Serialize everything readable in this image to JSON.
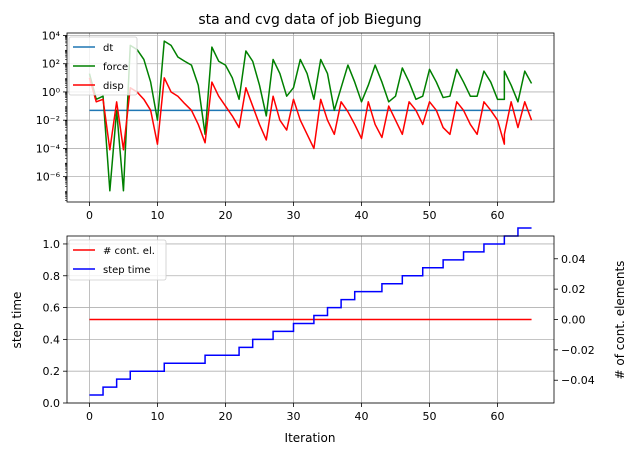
{
  "chart_data": [
    {
      "type": "line",
      "title": "sta and cvg data of job Biegung",
      "yscale": "log",
      "xlim": [
        -3.3,
        68.3
      ],
      "ylim": [
        1.6e-08,
        15000.0
      ],
      "x_ticks": [
        0,
        10,
        20,
        30,
        40,
        50,
        60
      ],
      "x_tick_labels": [
        "0",
        "10",
        "20",
        "30",
        "40",
        "50",
        "60"
      ],
      "y_ticks": [
        1e-06,
        0.0001,
        0.01,
        1,
        100,
        10000
      ],
      "y_tick_labels": [
        "10⁻⁶",
        "10⁻⁴",
        "10⁻²",
        "10⁰",
        "10²",
        "10⁴"
      ],
      "grid": true,
      "legend": "upper-left",
      "x": [
        0,
        1,
        2,
        3,
        4,
        5,
        6,
        7,
        8,
        9,
        10,
        11,
        12,
        13,
        14,
        15,
        16,
        17,
        18,
        19,
        20,
        21,
        22,
        23,
        24,
        25,
        26,
        27,
        28,
        29,
        30,
        31,
        32,
        33,
        34,
        35,
        36,
        37,
        38,
        39,
        40,
        41,
        42,
        43,
        44,
        45,
        46,
        47,
        48,
        49,
        50,
        51,
        52,
        53,
        54,
        55,
        56,
        57,
        58,
        59,
        60,
        61,
        61,
        62,
        63,
        64,
        65
      ],
      "series": [
        {
          "name": "dt",
          "color": "#1f77b4",
          "values": [
            0.05,
            0.05,
            0.05,
            0.05,
            0.05,
            0.05,
            0.05,
            0.05,
            0.05,
            0.05,
            0.05,
            0.05,
            0.05,
            0.05,
            0.05,
            0.05,
            0.05,
            0.05,
            0.05,
            0.05,
            0.05,
            0.05,
            0.05,
            0.05,
            0.05,
            0.05,
            0.05,
            0.05,
            0.05,
            0.05,
            0.05,
            0.05,
            0.05,
            0.05,
            0.05,
            0.05,
            0.05,
            0.05,
            0.05,
            0.05,
            0.05,
            0.05,
            0.05,
            0.05,
            0.05,
            0.05,
            0.05,
            0.05,
            0.05,
            0.05,
            0.05,
            0.05,
            0.05,
            0.05,
            0.05,
            0.05,
            0.05,
            0.05,
            0.05,
            0.05,
            0.05,
            0.05,
            0.05,
            0.05,
            0.05,
            0.05,
            0.05
          ]
        },
        {
          "name": "force",
          "color": "#008000",
          "values": [
            20,
            0.3,
            0.5,
            1e-07,
            0.05,
            1e-07,
            2000,
            1000,
            200,
            5,
            0.01,
            4000,
            2000,
            300,
            150,
            80,
            3,
            0.001,
            1500,
            150,
            80,
            10,
            0.3,
            800,
            150,
            3,
            0.02,
            200,
            20,
            0.5,
            2,
            200,
            20,
            0.3,
            200,
            20,
            0.05,
            2,
            80,
            5,
            0.2,
            3,
            80,
            5,
            0.2,
            0.5,
            50,
            5,
            0.3,
            0.5,
            40,
            5,
            0.4,
            0.5,
            40,
            5,
            0.5,
            0.5,
            30,
            5,
            0.3,
            0.3,
            30,
            3,
            0.2,
            30,
            4
          ]
        },
        {
          "name": "disp",
          "color": "#ff0000",
          "values": [
            10,
            0.2,
            0.3,
            8e-05,
            0.2,
            8e-05,
            2,
            1,
            0.3,
            0.05,
            0.0002,
            10,
            1,
            0.5,
            0.15,
            0.05,
            0.005,
            0.00025,
            5,
            0.5,
            0.1,
            0.02,
            0.003,
            2,
            0.1,
            0.005,
            0.0004,
            0.5,
            0.01,
            0.002,
            0.3,
            0.01,
            0.001,
            0.0001,
            0.3,
            0.01,
            0.001,
            0.2,
            0.04,
            0.005,
            0.0005,
            0.2,
            0.005,
            0.0006,
            0.1,
            0.01,
            0.001,
            0.2,
            0.05,
            0.005,
            0.2,
            0.05,
            0.003,
            0.001,
            0.2,
            0.05,
            0.005,
            0.001,
            0.2,
            0.05,
            0.01,
            0.0002,
            0.001,
            0.2,
            0.003,
            0.2,
            0.01
          ]
        }
      ]
    },
    {
      "type": "line",
      "xlabel": "Iteration",
      "ylabel": "step time",
      "ylabel_right": "# of cont. elements",
      "xlim": [
        -3.3,
        68.3
      ],
      "ylim": [
        0.0,
        1.05
      ],
      "ylim_right": [
        -0.055,
        0.055
      ],
      "x_ticks": [
        0,
        10,
        20,
        30,
        40,
        50,
        60
      ],
      "x_tick_labels": [
        "0",
        "10",
        "20",
        "30",
        "40",
        "50",
        "60"
      ],
      "y_ticks": [
        0.0,
        0.2,
        0.4,
        0.6,
        0.8,
        1.0
      ],
      "y_tick_labels": [
        "0.0",
        "0.2",
        "0.4",
        "0.6",
        "0.8",
        "1.0"
      ],
      "y_ticks_right": [
        -0.04,
        -0.02,
        0.0,
        0.02,
        0.04
      ],
      "y_tick_labels_right": [
        "−0.04",
        "−0.02",
        "0.00",
        "0.02",
        "0.04"
      ],
      "grid": true,
      "legend": "upper-left",
      "series": [
        {
          "name": "# cont. el.",
          "color": "#ff0000",
          "axis": "right",
          "x": [
            0,
            65
          ],
          "values": [
            0.0,
            0.0
          ]
        },
        {
          "name": "step time",
          "color": "#0000ff",
          "axis": "left",
          "drawstyle": "steps",
          "x": [
            0,
            1,
            2,
            3,
            4,
            5,
            6,
            7,
            8,
            9,
            10,
            11,
            12,
            13,
            14,
            15,
            16,
            17,
            18,
            19,
            20,
            21,
            22,
            23,
            24,
            25,
            26,
            27,
            28,
            29,
            30,
            31,
            32,
            33,
            34,
            35,
            36,
            37,
            38,
            39,
            40,
            41,
            42,
            43,
            44,
            45,
            46,
            47,
            48,
            49,
            50,
            51,
            52,
            53,
            54,
            55,
            56,
            57,
            58,
            59,
            60,
            61,
            62,
            63,
            64,
            65
          ],
          "values": [
            0.05,
            0.05,
            0.1,
            0.1,
            0.15,
            0.15,
            0.2,
            0.2,
            0.2,
            0.2,
            0.2,
            0.25,
            0.25,
            0.25,
            0.25,
            0.25,
            0.25,
            0.3,
            0.3,
            0.3,
            0.3,
            0.3,
            0.35,
            0.35,
            0.4,
            0.4,
            0.4,
            0.45,
            0.45,
            0.45,
            0.5,
            0.5,
            0.5,
            0.55,
            0.55,
            0.6,
            0.6,
            0.65,
            0.65,
            0.7,
            0.7,
            0.7,
            0.7,
            0.75,
            0.75,
            0.75,
            0.8,
            0.8,
            0.8,
            0.85,
            0.85,
            0.85,
            0.9,
            0.9,
            0.9,
            0.95,
            0.95,
            0.95,
            1.0,
            1.0,
            1.0,
            1.05,
            1.05,
            1.1,
            1.1,
            1.1
          ]
        }
      ]
    }
  ]
}
